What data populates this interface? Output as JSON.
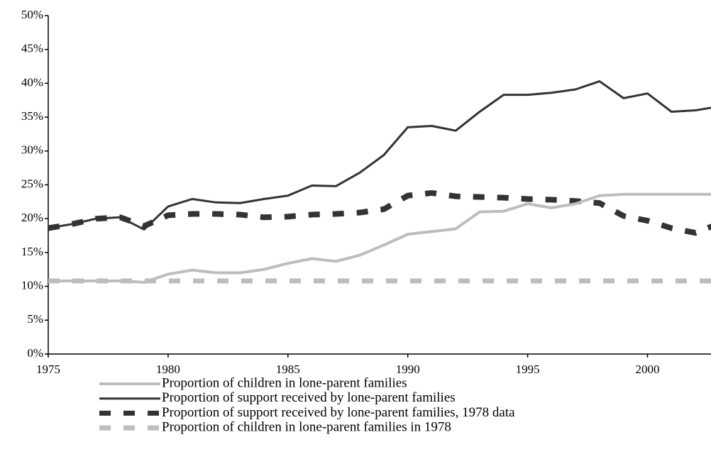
{
  "chart_data": {
    "type": "line",
    "x": [
      1975,
      1976,
      1977,
      1978,
      1979,
      1980,
      1981,
      1982,
      1983,
      1984,
      1985,
      1986,
      1987,
      1988,
      1989,
      1990,
      1991,
      1992,
      1993,
      1994,
      1995,
      1996,
      1997,
      1998,
      1999,
      2000,
      2001,
      2002,
      2003
    ],
    "series": [
      {
        "name": "Proportion of children in lone-parent families",
        "color": "#bdbdbd",
        "dash": "solid",
        "values": [
          10.8,
          10.8,
          10.8,
          10.8,
          10.6,
          11.8,
          12.4,
          12.0,
          12.0,
          12.5,
          13.4,
          14.1,
          13.7,
          14.6,
          16.1,
          17.7,
          18.1,
          18.5,
          21.0,
          21.1,
          22.2,
          21.6,
          22.2,
          23.4,
          23.6,
          23.6,
          23.6,
          23.6,
          23.6
        ]
      },
      {
        "name": "Proportion of support received by lone-parent families",
        "color": "#333333",
        "dash": "solid",
        "values": [
          18.6,
          19.2,
          20.0,
          20.2,
          18.4,
          21.8,
          22.9,
          22.4,
          22.3,
          22.9,
          23.4,
          24.9,
          24.8,
          26.8,
          29.4,
          33.5,
          33.7,
          33.0,
          35.8,
          38.3,
          38.3,
          38.6,
          39.1,
          40.3,
          37.8,
          38.5,
          35.8,
          36.0,
          36.6
        ]
      },
      {
        "name": "Proportion of support received by lone-parent families, 1978 data",
        "color": "#333333",
        "dash": "dashed",
        "values": [
          18.6,
          19.2,
          20.0,
          20.2,
          18.9,
          20.5,
          20.7,
          20.7,
          20.6,
          20.2,
          20.3,
          20.6,
          20.7,
          20.9,
          21.4,
          23.4,
          23.8,
          23.3,
          23.2,
          23.1,
          22.9,
          22.8,
          22.6,
          22.3,
          20.4,
          19.7,
          18.6,
          17.9,
          19.3
        ]
      },
      {
        "name": "Proportion of children in lone-parent families in 1978",
        "color": "#bdbdbd",
        "dash": "dashed",
        "values": [
          10.8,
          10.8,
          10.8,
          10.8,
          10.8,
          10.8,
          10.8,
          10.8,
          10.8,
          10.8,
          10.8,
          10.8,
          10.8,
          10.8,
          10.8,
          10.8,
          10.8,
          10.8,
          10.8,
          10.8,
          10.8,
          10.8,
          10.8,
          10.8,
          10.8,
          10.8,
          10.8,
          10.8,
          10.8
        ]
      }
    ],
    "xlim": [
      1975,
      2002.65
    ],
    "xticks": [
      1975,
      1980,
      1985,
      1990,
      1995,
      2000
    ],
    "ylim": [
      0,
      50
    ],
    "yticks": [
      {
        "value": 0,
        "label": "0%"
      },
      {
        "value": 5,
        "label": "5%"
      },
      {
        "value": 10,
        "label": "10%"
      },
      {
        "value": 15,
        "label": "15%"
      },
      {
        "value": 20,
        "label": "20%"
      },
      {
        "value": 25,
        "label": "25%"
      },
      {
        "value": 30,
        "label": "30%"
      },
      {
        "value": 35,
        "label": "35%"
      },
      {
        "value": 40,
        "label": "40%"
      },
      {
        "value": 45,
        "label": "45%"
      },
      {
        "value": 50,
        "label": "50%"
      }
    ],
    "legend": "bottom"
  }
}
